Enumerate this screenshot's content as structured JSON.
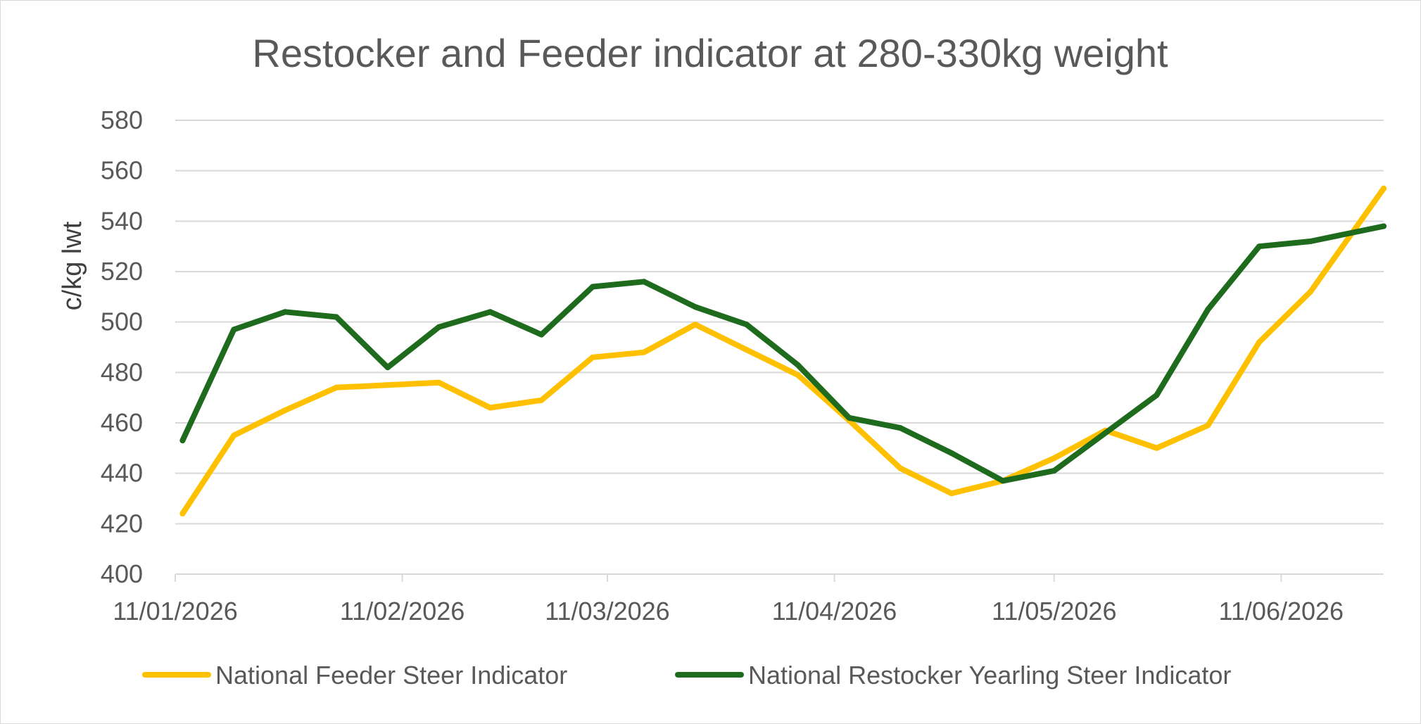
{
  "chart_data": {
    "type": "line",
    "title": "Restocker and Feeder indicator at 280-330kg weight",
    "ylabel": "c/kg lwt",
    "xlabel": "",
    "ylim": [
      400,
      580
    ],
    "yticks": [
      400,
      420,
      440,
      460,
      480,
      500,
      520,
      540,
      560,
      580
    ],
    "xlim": [
      "2026-01-11",
      "2026-06-25"
    ],
    "xticks": [
      {
        "date": "2026-01-11",
        "label": "11/01/2026"
      },
      {
        "date": "2026-02-11",
        "label": "11/02/2026"
      },
      {
        "date": "2026-03-11",
        "label": "11/03/2026"
      },
      {
        "date": "2026-04-11",
        "label": "11/04/2026"
      },
      {
        "date": "2026-05-11",
        "label": "11/05/2026"
      },
      {
        "date": "2026-06-11",
        "label": "11/06/2026"
      }
    ],
    "grid": true,
    "legend_position": "bottom",
    "x": [
      "2026-01-12",
      "2026-01-19",
      "2026-01-26",
      "2026-02-02",
      "2026-02-09",
      "2026-02-16",
      "2026-02-23",
      "2026-03-02",
      "2026-03-09",
      "2026-03-16",
      "2026-03-23",
      "2026-03-30",
      "2026-04-06",
      "2026-04-13",
      "2026-04-20",
      "2026-04-27",
      "2026-05-04",
      "2026-05-11",
      "2026-05-18",
      "2026-05-25",
      "2026-06-01",
      "2026-06-08",
      "2026-06-15",
      "2026-06-25"
    ],
    "series": [
      {
        "name": "National Feeder Steer Indicator",
        "color": "#ffc000",
        "values": [
          424,
          455,
          465,
          474,
          475,
          476,
          466,
          469,
          486,
          488,
          499,
          489,
          479,
          461,
          442,
          432,
          437,
          446,
          457,
          450,
          459,
          492,
          512,
          553
        ]
      },
      {
        "name": "National Restocker Yearling Steer Indicator",
        "color": "#1e6b1e",
        "values": [
          453,
          497,
          504,
          502,
          482,
          498,
          504,
          495,
          514,
          516,
          506,
          499,
          483,
          462,
          458,
          448,
          437,
          441,
          456,
          471,
          505,
          530,
          532,
          538
        ]
      }
    ]
  }
}
